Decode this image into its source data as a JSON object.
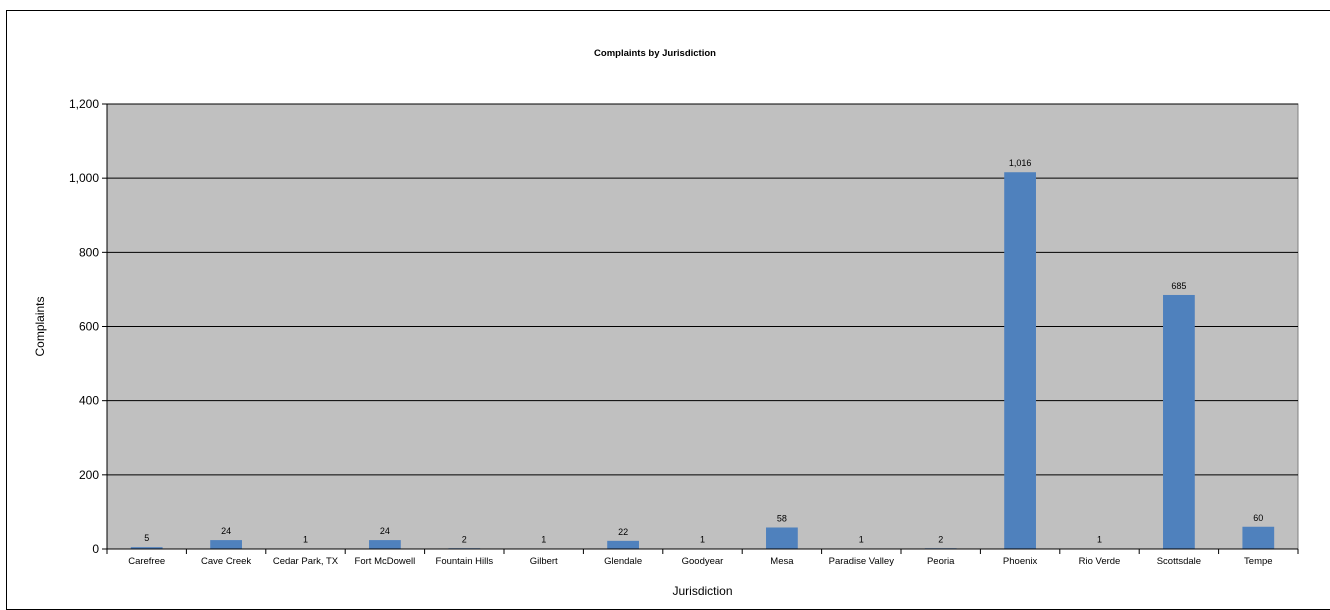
{
  "chart_data": {
    "type": "bar",
    "title": "Complaints by Jurisdiction",
    "xlabel": "Jurisdiction",
    "ylabel": "Complaints",
    "ylim": [
      0,
      1200
    ],
    "yticks": [
      0,
      200,
      400,
      600,
      800,
      1000,
      1200
    ],
    "ytick_labels": [
      "0",
      "200",
      "400",
      "600",
      "800",
      "1,000",
      "1,200"
    ],
    "categories": [
      "Carefree",
      "Cave Creek",
      "Cedar Park, TX",
      "Fort McDowell",
      "Fountain Hills",
      "Gilbert",
      "Glendale",
      "Goodyear",
      "Mesa",
      "Paradise Valley",
      "Peoria",
      "Phoenix",
      "Rio Verde",
      "Scottsdale",
      "Tempe"
    ],
    "values": [
      5,
      24,
      1,
      24,
      2,
      1,
      22,
      1,
      58,
      1,
      2,
      1016,
      1,
      685,
      60
    ],
    "data_labels": [
      "5",
      "24",
      "1",
      "24",
      "2",
      "1",
      "22",
      "1",
      "58",
      "1",
      "2",
      "1,016",
      "1",
      "685",
      "60"
    ],
    "grid": true,
    "legend": false,
    "colors": {
      "bar": "#4f81bd",
      "plot_background": "#c0c0c0",
      "grid": "#000000"
    }
  }
}
